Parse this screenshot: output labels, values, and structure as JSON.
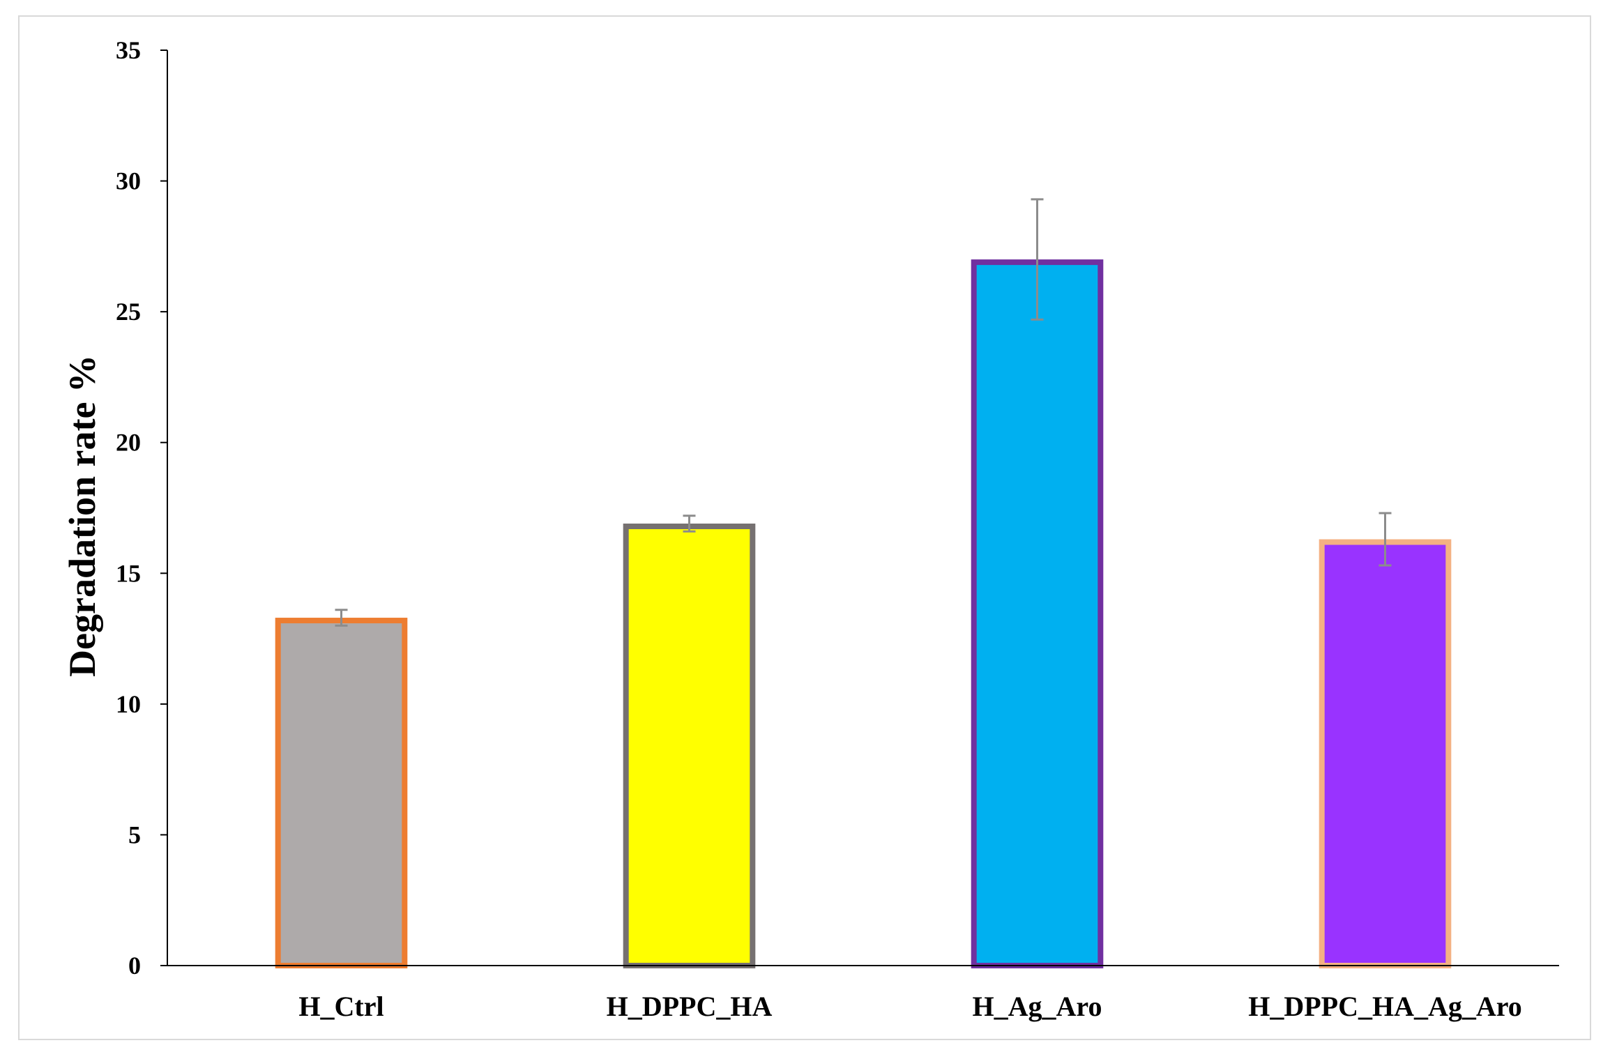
{
  "chart_data": {
    "type": "bar",
    "title": "",
    "xlabel": "",
    "ylabel": "Degradation rate %",
    "ylim": [
      0,
      35
    ],
    "yticks": [
      0,
      5,
      10,
      15,
      20,
      25,
      30,
      35
    ],
    "ytick_labels": [
      "0",
      "5",
      "10",
      "15",
      "20",
      "25",
      "30",
      "35"
    ],
    "grid": false,
    "legend": "none",
    "categories": [
      "H_Ctrl",
      "H_DPPC_HA",
      "H_Ag_Aro",
      "H_DPPC_HA_Ag_Aro"
    ],
    "values": [
      13.3,
      16.9,
      27.0,
      16.3
    ],
    "error": [
      0.3,
      0.3,
      2.3,
      1.0
    ],
    "bar_fill_colors": [
      "#aeaaaa",
      "#ffff00",
      "#00b0f0",
      "#9933ff"
    ],
    "bar_edge_colors": [
      "#ed7d31",
      "#767171",
      "#7030a0",
      "#f4b183"
    ],
    "error_bar_color": "#8c8c8c",
    "axis_color": "#000000"
  }
}
